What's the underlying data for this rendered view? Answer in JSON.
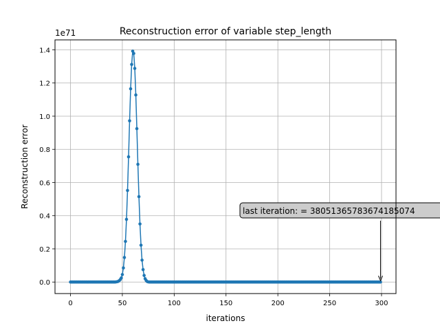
{
  "chart_data": {
    "type": "line",
    "title": "Reconstruction error of variable step_length",
    "xlabel": "iterations",
    "ylabel": "Reconstruction error",
    "y_offset_label": "1e71",
    "xlim": [
      -14.95,
      313.95
    ],
    "ylim": [
      -0.0695,
      1.46
    ],
    "xticks": [
      0,
      50,
      100,
      150,
      200,
      250,
      300
    ],
    "xtick_labels": [
      "0",
      "50",
      "100",
      "150",
      "200",
      "250",
      "300"
    ],
    "yticks": [
      0.0,
      0.2,
      0.4,
      0.6,
      0.8,
      1.0,
      1.2,
      1.4
    ],
    "ytick_labels": [
      "0.0",
      "0.2",
      "0.4",
      "0.6",
      "0.8",
      "1.0",
      "1.2",
      "1.4"
    ],
    "grid": true,
    "units_scale": 1e+71,
    "series": [
      {
        "color": "#1f77b4",
        "marker": "circle",
        "points": [
          [
            0,
            0
          ],
          [
            43,
            0
          ],
          [
            44,
            0.001
          ],
          [
            45,
            0.002
          ],
          [
            46,
            0.004
          ],
          [
            47,
            0.008
          ],
          [
            48,
            0.015
          ],
          [
            49,
            0.025
          ],
          [
            50,
            0.045
          ],
          [
            51,
            0.085
          ],
          [
            52,
            0.148
          ],
          [
            53,
            0.245
          ],
          [
            54,
            0.378
          ],
          [
            55,
            0.552
          ],
          [
            56,
            0.755
          ],
          [
            57,
            0.972
          ],
          [
            58,
            1.165
          ],
          [
            59,
            1.312
          ],
          [
            60,
            1.392
          ],
          [
            61,
            1.378
          ],
          [
            62,
            1.288
          ],
          [
            63,
            1.128
          ],
          [
            64,
            0.925
          ],
          [
            65,
            0.71
          ],
          [
            66,
            0.515
          ],
          [
            67,
            0.35
          ],
          [
            68,
            0.222
          ],
          [
            69,
            0.132
          ],
          [
            70,
            0.075
          ],
          [
            71,
            0.04
          ],
          [
            72,
            0.02
          ],
          [
            73,
            0.009
          ],
          [
            74,
            0.003
          ],
          [
            75,
            0.001
          ],
          [
            76,
            0
          ],
          [
            299,
            0
          ]
        ]
      }
    ],
    "annotation": {
      "text": "last iteration: = 38051365783674185074",
      "x": 299,
      "y": 0
    }
  }
}
